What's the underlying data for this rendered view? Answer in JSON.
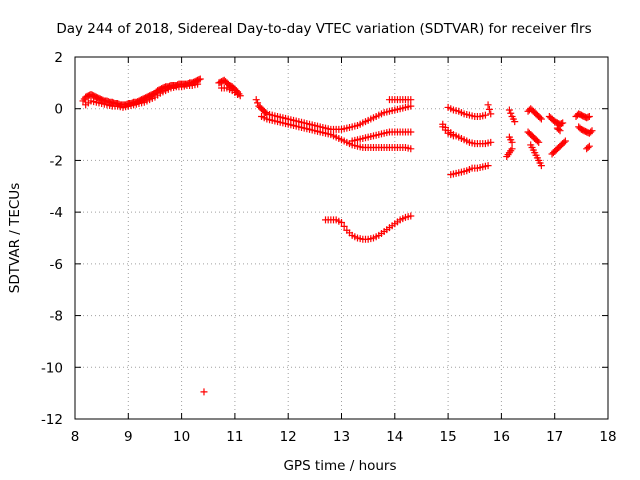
{
  "chart_data": {
    "type": "scatter",
    "title": "Day 244 of 2018, Sidereal Day-to-day VTEC variation (SDTVAR) for receiver flrs",
    "xlabel": "GPS time / hours",
    "ylabel": "SDTVAR / TECUs",
    "xlim": [
      8,
      18
    ],
    "ylim": [
      -12,
      2
    ],
    "xticks": [
      "8",
      "9",
      "10",
      "11",
      "12",
      "13",
      "14",
      "15",
      "16",
      "17",
      "18"
    ],
    "yticks": [
      "-12",
      "-10",
      "-8",
      "-6",
      "-4",
      "-2",
      "0",
      "2"
    ],
    "grid": true,
    "marker": "plus",
    "color": "#ff0000",
    "series": [
      {
        "name": "s1",
        "points": [
          [
            8.15,
            0.3
          ],
          [
            8.2,
            0.45
          ],
          [
            8.25,
            0.5
          ],
          [
            8.3,
            0.55
          ],
          [
            8.35,
            0.5
          ],
          [
            8.4,
            0.45
          ],
          [
            8.45,
            0.4
          ],
          [
            8.5,
            0.35
          ],
          [
            8.55,
            0.3
          ],
          [
            8.6,
            0.3
          ],
          [
            8.65,
            0.25
          ],
          [
            8.7,
            0.25
          ],
          [
            8.75,
            0.2
          ],
          [
            8.8,
            0.2
          ],
          [
            8.85,
            0.15
          ],
          [
            8.9,
            0.15
          ],
          [
            8.95,
            0.15
          ],
          [
            9.0,
            0.2
          ],
          [
            9.05,
            0.2
          ],
          [
            9.1,
            0.25
          ],
          [
            9.15,
            0.25
          ],
          [
            9.2,
            0.3
          ],
          [
            9.25,
            0.35
          ],
          [
            9.3,
            0.4
          ],
          [
            9.35,
            0.45
          ],
          [
            9.4,
            0.5
          ],
          [
            9.45,
            0.55
          ],
          [
            9.5,
            0.6
          ],
          [
            9.55,
            0.7
          ],
          [
            9.6,
            0.75
          ],
          [
            9.65,
            0.8
          ],
          [
            9.7,
            0.85
          ],
          [
            9.75,
            0.85
          ],
          [
            9.8,
            0.9
          ],
          [
            9.85,
            0.9
          ],
          [
            9.9,
            0.9
          ],
          [
            9.95,
            0.95
          ],
          [
            10.0,
            0.95
          ],
          [
            10.05,
            0.95
          ],
          [
            10.1,
            0.95
          ],
          [
            10.15,
            1.0
          ],
          [
            10.2,
            1.0
          ],
          [
            10.25,
            1.05
          ],
          [
            10.3,
            1.1
          ],
          [
            10.35,
            1.15
          ]
        ]
      },
      {
        "name": "s1b",
        "points": [
          [
            8.2,
            0.15
          ],
          [
            8.3,
            0.3
          ],
          [
            8.4,
            0.25
          ],
          [
            8.5,
            0.2
          ],
          [
            8.6,
            0.15
          ],
          [
            8.7,
            0.1
          ],
          [
            8.8,
            0.1
          ],
          [
            8.9,
            0.05
          ],
          [
            9.0,
            0.1
          ],
          [
            9.1,
            0.15
          ],
          [
            9.2,
            0.2
          ],
          [
            9.3,
            0.25
          ],
          [
            9.4,
            0.35
          ],
          [
            9.5,
            0.45
          ],
          [
            9.6,
            0.6
          ],
          [
            9.7,
            0.7
          ],
          [
            9.8,
            0.8
          ],
          [
            9.9,
            0.85
          ],
          [
            10.0,
            0.85
          ],
          [
            10.1,
            0.9
          ],
          [
            10.2,
            0.9
          ],
          [
            10.3,
            0.95
          ]
        ]
      },
      {
        "name": "s2",
        "points": [
          [
            10.7,
            1.0
          ],
          [
            10.75,
            1.05
          ],
          [
            10.8,
            1.1
          ],
          [
            10.85,
            1.0
          ],
          [
            10.9,
            0.9
          ],
          [
            10.95,
            0.85
          ],
          [
            11.0,
            0.75
          ],
          [
            11.05,
            0.65
          ],
          [
            11.1,
            0.5
          ],
          [
            10.75,
            0.8
          ],
          [
            10.85,
            0.8
          ],
          [
            10.95,
            0.7
          ],
          [
            11.05,
            0.55
          ]
        ]
      },
      {
        "name": "s3",
        "points": [
          [
            11.4,
            0.35
          ],
          [
            11.45,
            0.1
          ],
          [
            11.5,
            0.0
          ],
          [
            11.55,
            -0.1
          ],
          [
            11.6,
            -0.2
          ],
          [
            11.7,
            -0.25
          ],
          [
            11.8,
            -0.3
          ],
          [
            11.9,
            -0.35
          ],
          [
            12.0,
            -0.4
          ],
          [
            12.1,
            -0.45
          ],
          [
            12.2,
            -0.5
          ],
          [
            12.3,
            -0.55
          ],
          [
            12.4,
            -0.6
          ],
          [
            12.5,
            -0.65
          ],
          [
            12.6,
            -0.7
          ],
          [
            12.7,
            -0.75
          ],
          [
            12.8,
            -0.8
          ],
          [
            12.9,
            -0.8
          ],
          [
            13.0,
            -0.8
          ],
          [
            13.1,
            -0.75
          ],
          [
            13.2,
            -0.7
          ],
          [
            13.3,
            -0.65
          ],
          [
            13.4,
            -0.55
          ],
          [
            13.5,
            -0.45
          ],
          [
            13.6,
            -0.35
          ],
          [
            13.7,
            -0.25
          ],
          [
            13.8,
            -0.15
          ],
          [
            13.9,
            -0.1
          ],
          [
            14.0,
            -0.05
          ],
          [
            14.1,
            0.0
          ],
          [
            14.2,
            0.05
          ],
          [
            14.3,
            0.1
          ]
        ]
      },
      {
        "name": "s3b",
        "points": [
          [
            11.5,
            -0.3
          ],
          [
            11.6,
            -0.4
          ],
          [
            11.7,
            -0.45
          ],
          [
            11.8,
            -0.5
          ],
          [
            11.9,
            -0.55
          ],
          [
            12.0,
            -0.6
          ],
          [
            12.1,
            -0.65
          ],
          [
            12.2,
            -0.7
          ],
          [
            12.3,
            -0.75
          ],
          [
            12.4,
            -0.8
          ],
          [
            12.5,
            -0.85
          ],
          [
            12.6,
            -0.9
          ],
          [
            12.7,
            -0.95
          ],
          [
            12.8,
            -1.0
          ],
          [
            12.9,
            -1.1
          ],
          [
            13.0,
            -1.2
          ],
          [
            13.1,
            -1.3
          ],
          [
            13.2,
            -1.4
          ],
          [
            13.3,
            -1.45
          ],
          [
            13.4,
            -1.5
          ],
          [
            13.5,
            -1.5
          ],
          [
            13.6,
            -1.5
          ],
          [
            13.7,
            -1.5
          ],
          [
            13.8,
            -1.5
          ],
          [
            13.9,
            -1.5
          ],
          [
            14.0,
            -1.5
          ],
          [
            14.1,
            -1.5
          ],
          [
            14.2,
            -1.5
          ],
          [
            14.3,
            -1.55
          ]
        ]
      },
      {
        "name": "s3c",
        "points": [
          [
            13.2,
            -1.25
          ],
          [
            13.3,
            -1.2
          ],
          [
            13.4,
            -1.15
          ],
          [
            13.5,
            -1.1
          ],
          [
            13.6,
            -1.05
          ],
          [
            13.7,
            -1.0
          ],
          [
            13.8,
            -0.95
          ],
          [
            13.9,
            -0.9
          ],
          [
            14.0,
            -0.9
          ],
          [
            14.1,
            -0.9
          ],
          [
            14.2,
            -0.9
          ],
          [
            14.3,
            -0.9
          ]
        ]
      },
      {
        "name": "s3d",
        "points": [
          [
            13.9,
            0.35
          ],
          [
            14.0,
            0.35
          ],
          [
            14.1,
            0.35
          ],
          [
            14.2,
            0.35
          ],
          [
            14.3,
            0.35
          ]
        ]
      },
      {
        "name": "s4",
        "points": [
          [
            12.7,
            -4.3
          ],
          [
            12.8,
            -4.3
          ],
          [
            12.9,
            -4.3
          ],
          [
            13.0,
            -4.4
          ],
          [
            13.1,
            -4.7
          ],
          [
            13.2,
            -4.9
          ],
          [
            13.3,
            -5.0
          ],
          [
            13.4,
            -5.05
          ],
          [
            13.5,
            -5.05
          ],
          [
            13.6,
            -5.0
          ],
          [
            13.7,
            -4.9
          ],
          [
            13.8,
            -4.75
          ],
          [
            13.9,
            -4.6
          ],
          [
            14.0,
            -4.45
          ],
          [
            14.1,
            -4.3
          ],
          [
            14.2,
            -4.2
          ],
          [
            14.3,
            -4.15
          ]
        ]
      },
      {
        "name": "s5",
        "points": [
          [
            10.42,
            -10.95
          ]
        ]
      },
      {
        "name": "s6",
        "points": [
          [
            14.9,
            -0.6
          ],
          [
            15.0,
            -0.85
          ],
          [
            15.1,
            -1.0
          ],
          [
            15.2,
            -1.1
          ],
          [
            15.3,
            -1.2
          ],
          [
            15.4,
            -1.3
          ],
          [
            15.5,
            -1.35
          ],
          [
            15.6,
            -1.35
          ],
          [
            15.7,
            -1.35
          ],
          [
            15.8,
            -1.3
          ],
          [
            14.9,
            -0.7
          ],
          [
            15.0,
            -0.95
          ],
          [
            15.1,
            -1.05
          ]
        ]
      },
      {
        "name": "s6b",
        "points": [
          [
            15.0,
            0.05
          ],
          [
            15.1,
            -0.05
          ],
          [
            15.2,
            -0.1
          ],
          [
            15.3,
            -0.2
          ],
          [
            15.4,
            -0.25
          ],
          [
            15.5,
            -0.3
          ],
          [
            15.6,
            -0.3
          ],
          [
            15.7,
            -0.25
          ],
          [
            15.75,
            0.15
          ],
          [
            15.8,
            -0.2
          ]
        ]
      },
      {
        "name": "s6c",
        "points": [
          [
            15.05,
            -2.55
          ],
          [
            15.15,
            -2.5
          ],
          [
            15.25,
            -2.45
          ],
          [
            15.35,
            -2.4
          ],
          [
            15.45,
            -2.3
          ],
          [
            15.55,
            -2.3
          ],
          [
            15.65,
            -2.25
          ],
          [
            15.75,
            -2.2
          ]
        ]
      },
      {
        "name": "s7",
        "points": [
          [
            16.15,
            -0.05
          ],
          [
            16.2,
            -0.3
          ],
          [
            16.25,
            -0.5
          ],
          [
            16.15,
            -1.1
          ],
          [
            16.2,
            -1.3
          ],
          [
            16.1,
            -1.85
          ],
          [
            16.15,
            -1.7
          ],
          [
            16.2,
            -1.55
          ]
        ]
      },
      {
        "name": "s7b",
        "points": [
          [
            16.5,
            -0.1
          ],
          [
            16.55,
            0.0
          ],
          [
            16.6,
            -0.1
          ],
          [
            16.65,
            -0.2
          ],
          [
            16.7,
            -0.3
          ],
          [
            16.75,
            -0.4
          ],
          [
            16.5,
            -0.9
          ],
          [
            16.55,
            -1.0
          ],
          [
            16.6,
            -1.1
          ],
          [
            16.65,
            -1.2
          ],
          [
            16.7,
            -1.3
          ],
          [
            16.55,
            -1.4
          ],
          [
            16.6,
            -1.6
          ],
          [
            16.65,
            -1.8
          ],
          [
            16.7,
            -2.0
          ],
          [
            16.75,
            -2.2
          ]
        ]
      },
      {
        "name": "s8",
        "points": [
          [
            16.9,
            -0.3
          ],
          [
            16.95,
            -0.4
          ],
          [
            17.0,
            -0.5
          ],
          [
            17.05,
            -0.55
          ],
          [
            17.1,
            -0.6
          ],
          [
            17.15,
            -0.55
          ],
          [
            17.05,
            -0.75
          ],
          [
            17.1,
            -0.85
          ],
          [
            16.95,
            -1.75
          ],
          [
            17.0,
            -1.65
          ],
          [
            17.05,
            -1.55
          ],
          [
            17.1,
            -1.45
          ],
          [
            17.15,
            -1.35
          ],
          [
            17.2,
            -1.25
          ]
        ]
      },
      {
        "name": "s8b",
        "points": [
          [
            17.4,
            -0.3
          ],
          [
            17.45,
            -0.2
          ],
          [
            17.5,
            -0.25
          ],
          [
            17.55,
            -0.3
          ],
          [
            17.6,
            -0.35
          ],
          [
            17.65,
            -0.3
          ],
          [
            17.45,
            -0.7
          ],
          [
            17.5,
            -0.8
          ],
          [
            17.55,
            -0.85
          ],
          [
            17.6,
            -0.9
          ],
          [
            17.65,
            -0.95
          ],
          [
            17.7,
            -0.85
          ],
          [
            17.6,
            -1.55
          ],
          [
            17.65,
            -1.45
          ]
        ]
      }
    ]
  }
}
